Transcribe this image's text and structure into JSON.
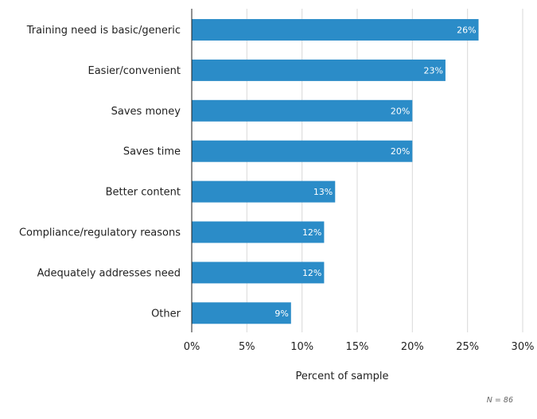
{
  "chart_data": {
    "type": "bar",
    "orientation": "horizontal",
    "categories": [
      "Training need is basic/generic",
      "Easier/convenient",
      "Saves money",
      "Saves time",
      "Better content",
      "Compliance/regulatory reasons",
      "Adequately addresses need",
      "Other"
    ],
    "values": [
      26,
      23,
      20,
      20,
      13,
      12,
      12,
      9
    ],
    "data_labels": [
      "26%",
      "23%",
      "20%",
      "20%",
      "13%",
      "12%",
      "12%",
      "9%"
    ],
    "xlabel": "Percent of sample",
    "ylabel": "",
    "xlim": [
      0,
      30
    ],
    "xticks": [
      0,
      5,
      10,
      15,
      20,
      25,
      30
    ],
    "xtick_labels": [
      "0%",
      "5%",
      "10%",
      "15%",
      "20%",
      "25%",
      "30%"
    ],
    "grid": true,
    "note": "N = 86",
    "bar_color": "#2b8cc8"
  }
}
